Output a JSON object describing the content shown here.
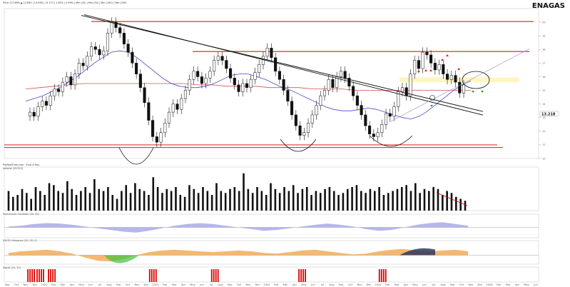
{
  "title": "ENAGAS",
  "header_strip": "Price (13.498) ▲ 12.895 | 13.098 | 13.173 | 1.65% | 0.99% | Mm (20) | Mm (50) | Mm (100) | Mm (200)",
  "price_badge": "13.218",
  "colors": {
    "background": "#ffffff",
    "candle": "#111111",
    "ma_fast": "#4848c8",
    "ma_slow": "#d05050",
    "resistance": "#cc0000",
    "trendline": "#111111",
    "highlight_zone": "#fff2b0",
    "volume_bar": "#111111",
    "osc_blue": "#7a7ae0",
    "osc_orange": "#f0a040",
    "osc_green": "#40c040",
    "signal_bar": "#dd0000",
    "marker_up": "#22aa22",
    "marker_down": "#dd2222"
  },
  "panels": {
    "volume": {
      "title": "Volume (13.512)",
      "subtitle": "ProRealTime.com · Euro 4 Day"
    },
    "oscillator_1": {
      "title": "Momentum Oscillator (20, 50)"
    },
    "oscillator_2": {
      "title": "MACD Histogram (20, 50, 9)"
    },
    "signals": {
      "title": "Signal (20, 50)"
    }
  },
  "x_axis_labels": [
    "Sep",
    "Oct",
    "Nov",
    "Dec",
    "2022",
    "Feb",
    "Mar",
    "Apr",
    "May",
    "Jun",
    "Jul",
    "Aug",
    "Sep",
    "Oct",
    "Nov",
    "Dec",
    "2023",
    "Feb",
    "Mar",
    "Apr",
    "May",
    "Jun",
    "Jul",
    "Aug",
    "Sep",
    "Oct",
    "Nov",
    "Dec",
    "2024",
    "Feb",
    "Mar",
    "Apr",
    "May",
    "Jun",
    "Jul",
    "Aug",
    "Sep",
    "Oct",
    "Nov",
    "Dec",
    "2025",
    "Feb",
    "Mar",
    "Apr",
    "May",
    "Jun",
    "Jul",
    "Aug",
    "Sep",
    "Oct",
    "Nov",
    "Dec",
    "2026",
    "Feb",
    "Mar",
    "Apr",
    "May",
    "Jun"
  ],
  "chart_data": {
    "type": "candlestick",
    "title": "ENAGAS",
    "x_start": "2021-08",
    "y_axis": {
      "range": [
        10.0,
        21.0
      ],
      "ticks": [
        20,
        19,
        18,
        17,
        16,
        15,
        14,
        13,
        12,
        11,
        10
      ]
    },
    "close_series": [
      13.4,
      13.1,
      13.8,
      14.2,
      13.9,
      14.6,
      15.1,
      14.9,
      15.6,
      16.0,
      15.4,
      16.2,
      17.0,
      16.8,
      17.5,
      18.2,
      18.0,
      17.6,
      17.9,
      19.2,
      20.0,
      19.6,
      19.2,
      18.4,
      17.8,
      17.0,
      16.2,
      15.2,
      14.1,
      12.8,
      11.6,
      11.2,
      11.9,
      12.6,
      13.4,
      14.0,
      13.6,
      14.4,
      15.0,
      15.8,
      16.4,
      16.0,
      15.5,
      15.9,
      16.4,
      17.2,
      17.5,
      17.2,
      16.6,
      15.9,
      15.4,
      14.9,
      15.5,
      15.2,
      15.8,
      16.3,
      16.9,
      17.5,
      18.1,
      17.4,
      16.4,
      15.8,
      15.0,
      14.2,
      13.2,
      12.4,
      11.7,
      11.9,
      12.6,
      13.2,
      13.9,
      14.6,
      15.0,
      15.8,
      15.2,
      16.0,
      16.4,
      15.9,
      15.3,
      14.6,
      13.9,
      13.2,
      12.4,
      11.8,
      11.6,
      11.9,
      12.5,
      13.3,
      13.1,
      13.8,
      14.9,
      15.2,
      14.6,
      16.2,
      17.2,
      16.6,
      17.8,
      17.6,
      17.0,
      16.5,
      16.9,
      16.2,
      15.8,
      16.1,
      15.6,
      14.8,
      15.4
    ],
    "moving_average_fast": [
      14.2,
      14.4,
      14.6,
      14.9,
      15.2,
      15.6,
      16.0,
      16.5,
      17.0,
      17.4,
      17.8,
      17.9,
      17.8,
      17.4,
      16.9,
      16.4,
      15.9,
      15.5,
      15.3,
      15.2,
      15.2,
      15.3,
      15.5,
      15.8,
      16.1,
      16.2,
      16.2,
      16.0,
      15.8,
      15.5,
      15.2,
      15.0,
      14.7,
      14.4,
      14.1,
      13.8,
      13.6,
      13.5,
      13.5,
      13.6,
      13.7,
      13.6,
      13.4,
      13.2,
      13.0,
      12.9,
      13.1,
      13.5,
      14.0,
      14.5,
      15.0,
      15.4,
      15.7
    ],
    "moving_average_slow": [
      15.1,
      15.2,
      15.3,
      15.4,
      15.5,
      15.5,
      15.5,
      15.5,
      15.5,
      15.5,
      15.5,
      15.5,
      15.4,
      15.4,
      15.3,
      15.3,
      15.3,
      15.2,
      15.2,
      15.2,
      15.1,
      15.1,
      15.1,
      15.0,
      15.0,
      15.0,
      15.0,
      15.0,
      15.0,
      15.0,
      15.0,
      15.0
    ],
    "resistance_levels": [
      {
        "name": "top",
        "price": 20.05
      },
      {
        "name": "upper",
        "price": 17.85
      },
      {
        "name": "support",
        "price": 11.0
      },
      {
        "name": "support_low",
        "price": 10.8
      }
    ],
    "downtrend_line": {
      "from": [
        "2022-05",
        20.5
      ],
      "to": [
        "2025-10",
        13.5
      ]
    },
    "uptrend_line": {
      "from": [
        "2025-03",
        13.1
      ],
      "to": [
        "2025-10",
        18.2
      ]
    },
    "highlight_zone": {
      "from_price": 15.6,
      "to_price": 15.95
    },
    "volume": [
      0.5,
      0.35,
      0.4,
      0.55,
      0.45,
      0.3,
      0.6,
      0.5,
      0.4,
      0.7,
      0.65,
      0.5,
      0.45,
      0.75,
      0.55,
      0.4,
      0.5,
      0.6,
      0.45,
      0.8,
      0.55,
      0.5,
      0.6,
      0.4,
      0.3,
      0.5,
      0.65,
      0.45,
      0.7,
      0.55,
      0.5,
      0.4,
      0.85,
      0.6,
      0.45,
      0.55,
      0.5,
      0.6,
      0.4,
      0.35,
      0.65,
      0.55,
      0.45,
      0.6,
      0.5,
      0.4,
      0.7,
      0.5,
      0.45,
      0.55,
      0.6,
      0.5,
      0.95,
      0.55,
      0.45,
      0.6,
      0.5,
      0.4,
      0.7,
      0.55,
      0.45,
      0.6,
      0.5,
      0.65,
      0.45,
      0.55,
      0.6,
      0.4,
      0.5,
      0.45,
      0.55,
      0.6,
      0.5,
      0.4,
      0.45,
      0.55,
      0.6,
      0.65,
      0.5,
      0.45,
      0.55,
      0.5,
      0.6,
      0.4,
      0.45,
      0.5,
      0.55,
      0.6,
      0.65,
      0.5,
      0.7,
      0.45,
      0.55,
      0.5,
      0.6,
      0.55,
      0.4,
      0.5,
      0.45,
      0.35,
      0.3,
      0.25
    ],
    "signal_bursts": [
      0.05,
      0.07,
      0.095,
      0.315,
      0.45,
      0.64,
      0.815
    ],
    "oscillator_1": [
      0.1,
      0.2,
      0.4,
      0.5,
      0.45,
      0.3,
      0.1,
      -0.1,
      -0.3,
      -0.5,
      -0.6,
      -0.4,
      -0.1,
      0.2,
      0.4,
      0.5,
      0.4,
      0.2,
      0.0,
      -0.2,
      -0.4,
      -0.3,
      -0.1,
      0.1,
      0.3,
      0.45,
      0.3,
      0.1,
      -0.2,
      -0.4,
      -0.3,
      0.0,
      0.3,
      0.5,
      0.6,
      0.4,
      0.2
    ],
    "oscillator_2": [
      0.3,
      0.5,
      0.6,
      0.7,
      0.5,
      0.2,
      -0.3,
      -0.7,
      -0.8,
      -0.5,
      0.0,
      0.4,
      0.6,
      0.7,
      0.6,
      0.5,
      0.4,
      0.5,
      0.6,
      0.5,
      0.3,
      0.2,
      0.4,
      0.6,
      0.7,
      0.5,
      0.3,
      0.1,
      0.2,
      0.5,
      0.7,
      0.8,
      0.6,
      0.5,
      0.6,
      0.7,
      0.5
    ]
  }
}
